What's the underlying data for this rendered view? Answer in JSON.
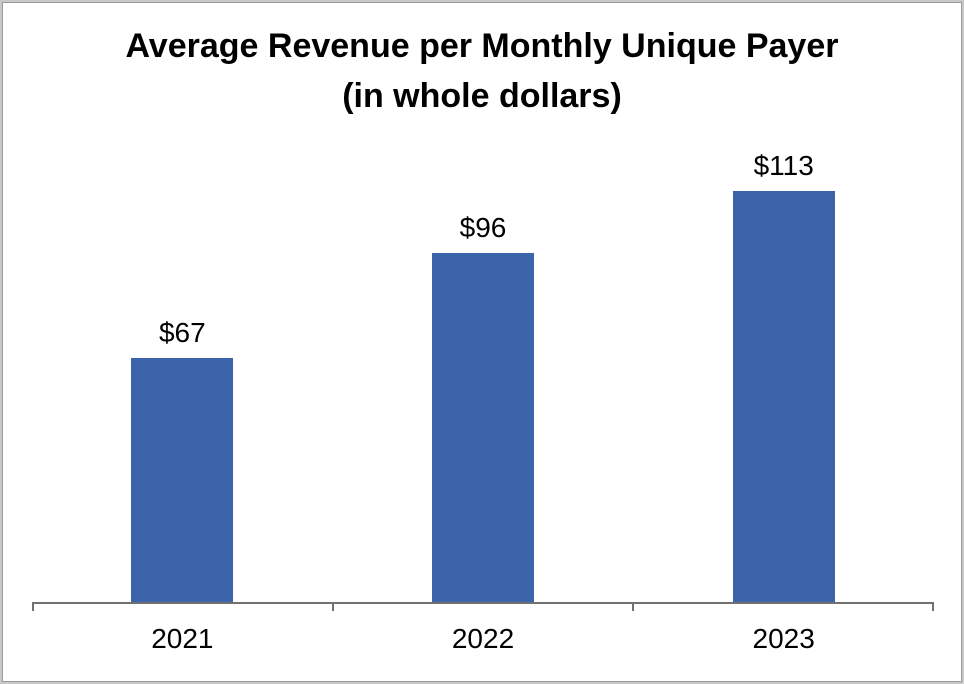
{
  "frame": {
    "background": "#ffffff",
    "outer_border_color": "#c8c8c8",
    "inner_border_color": "#9b9b9b"
  },
  "chart_data": {
    "type": "bar",
    "title": "Average Revenue per Monthly Unique Payer (in whole dollars)",
    "title_lines": [
      "Average Revenue per Monthly Unique Payer",
      "(in whole dollars)"
    ],
    "categories": [
      "2021",
      "2022",
      "2023"
    ],
    "values": [
      67,
      96,
      113
    ],
    "value_labels": [
      "$67",
      "$96",
      "$113"
    ],
    "series_name": "Average revenue per monthly unique payer (USD)",
    "bar_color": "#3c64aa",
    "axis_color": "#717171",
    "text_color": "#000000",
    "xlabel": "",
    "ylabel": "",
    "y_axis_visible": false,
    "gridlines": false,
    "legend": "none",
    "baseline_value": 0
  }
}
